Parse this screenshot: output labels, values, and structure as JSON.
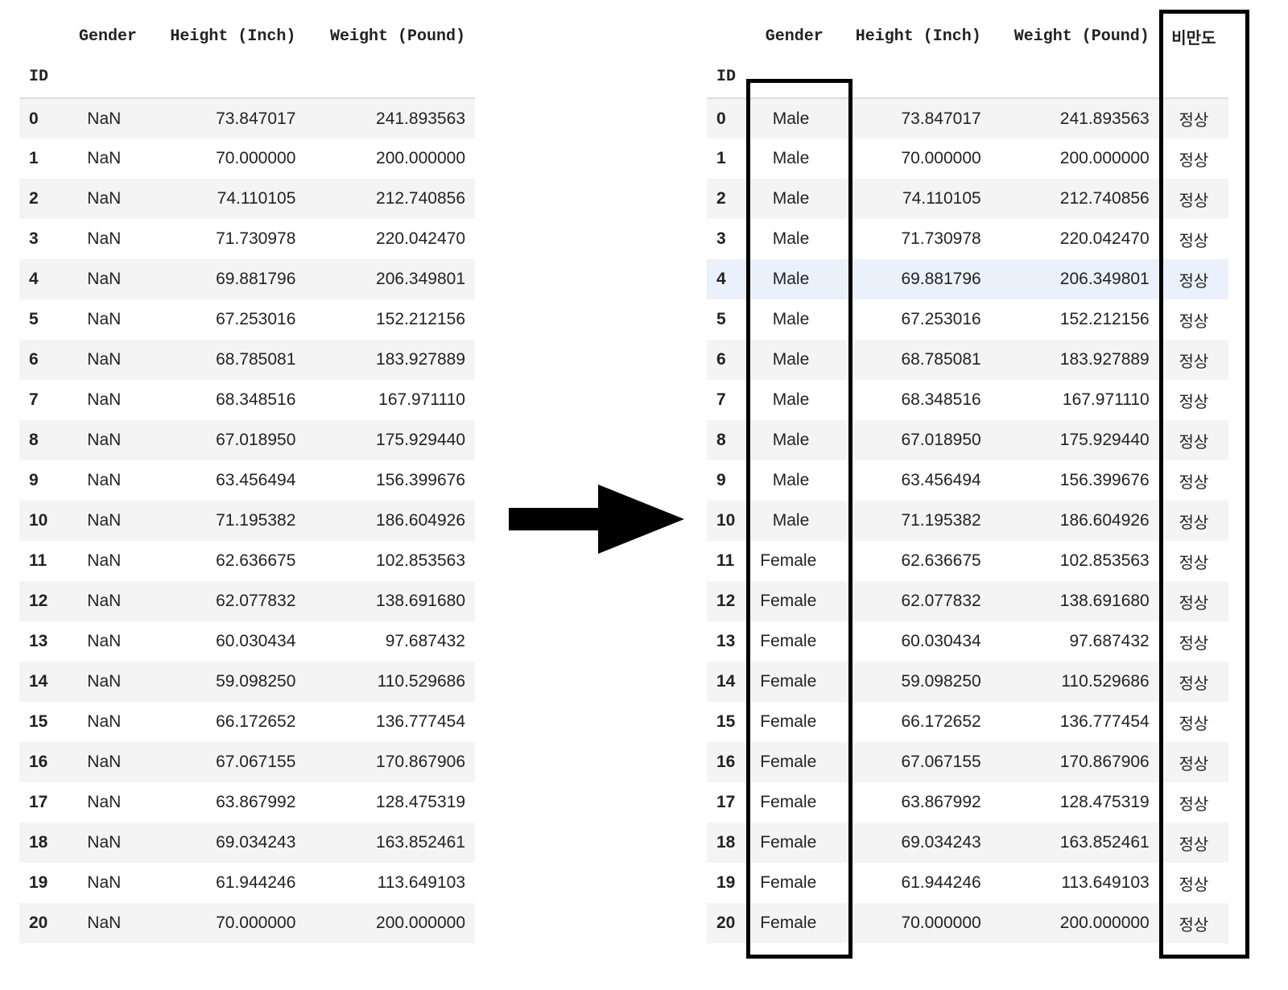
{
  "left_table": {
    "columns": [
      "Gender",
      "Height (Inch)",
      "Weight (Pound)"
    ],
    "index_name": "ID",
    "rows": [
      {
        "id": "0",
        "gender": "NaN",
        "height": "73.847017",
        "weight": "241.893563"
      },
      {
        "id": "1",
        "gender": "NaN",
        "height": "70.000000",
        "weight": "200.000000"
      },
      {
        "id": "2",
        "gender": "NaN",
        "height": "74.110105",
        "weight": "212.740856"
      },
      {
        "id": "3",
        "gender": "NaN",
        "height": "71.730978",
        "weight": "220.042470"
      },
      {
        "id": "4",
        "gender": "NaN",
        "height": "69.881796",
        "weight": "206.349801"
      },
      {
        "id": "5",
        "gender": "NaN",
        "height": "67.253016",
        "weight": "152.212156"
      },
      {
        "id": "6",
        "gender": "NaN",
        "height": "68.785081",
        "weight": "183.927889"
      },
      {
        "id": "7",
        "gender": "NaN",
        "height": "68.348516",
        "weight": "167.971110"
      },
      {
        "id": "8",
        "gender": "NaN",
        "height": "67.018950",
        "weight": "175.929440"
      },
      {
        "id": "9",
        "gender": "NaN",
        "height": "63.456494",
        "weight": "156.399676"
      },
      {
        "id": "10",
        "gender": "NaN",
        "height": "71.195382",
        "weight": "186.604926"
      },
      {
        "id": "11",
        "gender": "NaN",
        "height": "62.636675",
        "weight": "102.853563"
      },
      {
        "id": "12",
        "gender": "NaN",
        "height": "62.077832",
        "weight": "138.691680"
      },
      {
        "id": "13",
        "gender": "NaN",
        "height": "60.030434",
        "weight": "97.687432"
      },
      {
        "id": "14",
        "gender": "NaN",
        "height": "59.098250",
        "weight": "110.529686"
      },
      {
        "id": "15",
        "gender": "NaN",
        "height": "66.172652",
        "weight": "136.777454"
      },
      {
        "id": "16",
        "gender": "NaN",
        "height": "67.067155",
        "weight": "170.867906"
      },
      {
        "id": "17",
        "gender": "NaN",
        "height": "63.867992",
        "weight": "128.475319"
      },
      {
        "id": "18",
        "gender": "NaN",
        "height": "69.034243",
        "weight": "163.852461"
      },
      {
        "id": "19",
        "gender": "NaN",
        "height": "61.944246",
        "weight": "113.649103"
      },
      {
        "id": "20",
        "gender": "NaN",
        "height": "70.000000",
        "weight": "200.000000"
      }
    ]
  },
  "right_table": {
    "columns": [
      "Gender",
      "Height (Inch)",
      "Weight (Pound)",
      "비만도"
    ],
    "index_name": "ID",
    "highlighted_row": "4",
    "rows": [
      {
        "id": "0",
        "gender": "Male",
        "height": "73.847017",
        "weight": "241.893563",
        "obesity": "정상"
      },
      {
        "id": "1",
        "gender": "Male",
        "height": "70.000000",
        "weight": "200.000000",
        "obesity": "정상"
      },
      {
        "id": "2",
        "gender": "Male",
        "height": "74.110105",
        "weight": "212.740856",
        "obesity": "정상"
      },
      {
        "id": "3",
        "gender": "Male",
        "height": "71.730978",
        "weight": "220.042470",
        "obesity": "정상"
      },
      {
        "id": "4",
        "gender": "Male",
        "height": "69.881796",
        "weight": "206.349801",
        "obesity": "정상"
      },
      {
        "id": "5",
        "gender": "Male",
        "height": "67.253016",
        "weight": "152.212156",
        "obesity": "정상"
      },
      {
        "id": "6",
        "gender": "Male",
        "height": "68.785081",
        "weight": "183.927889",
        "obesity": "정상"
      },
      {
        "id": "7",
        "gender": "Male",
        "height": "68.348516",
        "weight": "167.971110",
        "obesity": "정상"
      },
      {
        "id": "8",
        "gender": "Male",
        "height": "67.018950",
        "weight": "175.929440",
        "obesity": "정상"
      },
      {
        "id": "9",
        "gender": "Male",
        "height": "63.456494",
        "weight": "156.399676",
        "obesity": "정상"
      },
      {
        "id": "10",
        "gender": "Male",
        "height": "71.195382",
        "weight": "186.604926",
        "obesity": "정상"
      },
      {
        "id": "11",
        "gender": "Female",
        "height": "62.636675",
        "weight": "102.853563",
        "obesity": "정상"
      },
      {
        "id": "12",
        "gender": "Female",
        "height": "62.077832",
        "weight": "138.691680",
        "obesity": "정상"
      },
      {
        "id": "13",
        "gender": "Female",
        "height": "60.030434",
        "weight": "97.687432",
        "obesity": "정상"
      },
      {
        "id": "14",
        "gender": "Female",
        "height": "59.098250",
        "weight": "110.529686",
        "obesity": "정상"
      },
      {
        "id": "15",
        "gender": "Female",
        "height": "66.172652",
        "weight": "136.777454",
        "obesity": "정상"
      },
      {
        "id": "16",
        "gender": "Female",
        "height": "67.067155",
        "weight": "170.867906",
        "obesity": "정상"
      },
      {
        "id": "17",
        "gender": "Female",
        "height": "63.867992",
        "weight": "128.475319",
        "obesity": "정상"
      },
      {
        "id": "18",
        "gender": "Female",
        "height": "69.034243",
        "weight": "163.852461",
        "obesity": "정상"
      },
      {
        "id": "19",
        "gender": "Female",
        "height": "61.944246",
        "weight": "113.649103",
        "obesity": "정상"
      },
      {
        "id": "20",
        "gender": "Female",
        "height": "70.000000",
        "weight": "200.000000",
        "obesity": "정상"
      }
    ]
  },
  "arrow": {
    "icon": "right-arrow-icon",
    "color": "#000000"
  },
  "highlight_boxes": {
    "color": "#000000",
    "targets": [
      "Gender",
      "비만도"
    ]
  }
}
